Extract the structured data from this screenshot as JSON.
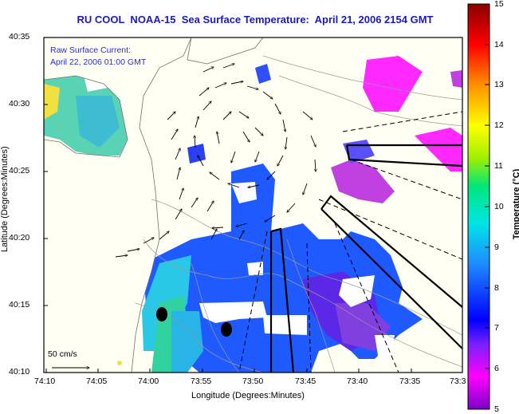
{
  "title": "RU COOL  NOAA-15  Sea Surface Temperature:  April 21, 2006 2154 GMT",
  "annotation": {
    "line1": "Raw Surface Current:",
    "line2": "April 22, 2006 01:00 GMT"
  },
  "axes": {
    "xlabel": "Longitude (Degrees:Minutes)",
    "ylabel": "Latitude (Degrees:Minutes)",
    "x_ticks": [
      "74:10",
      "74:05",
      "74:00",
      "73:55",
      "73:50",
      "73:45",
      "73:40",
      "73:35",
      "73:3"
    ],
    "y_ticks": [
      "40:35",
      "40:30",
      "40:25",
      "40:20",
      "40:15",
      "40:10"
    ]
  },
  "scale_arrow": {
    "label": "50 cm/s"
  },
  "colorbar": {
    "label": "Temperature (°C)",
    "ticks": [
      "15",
      "14",
      "13",
      "12",
      "11",
      "10",
      "9",
      "8",
      "7",
      "6",
      "5"
    ],
    "min": 5,
    "max": 15,
    "colormap": [
      "#ff00ff",
      "#0000ff",
      "#00ffff",
      "#00ff00",
      "#ffff00",
      "#ff0000",
      "#800000"
    ]
  },
  "colors": {
    "title": "#1a1ab4",
    "annotation": "#2a2ad0",
    "land": "#fffff0",
    "coast": "#808080"
  }
}
